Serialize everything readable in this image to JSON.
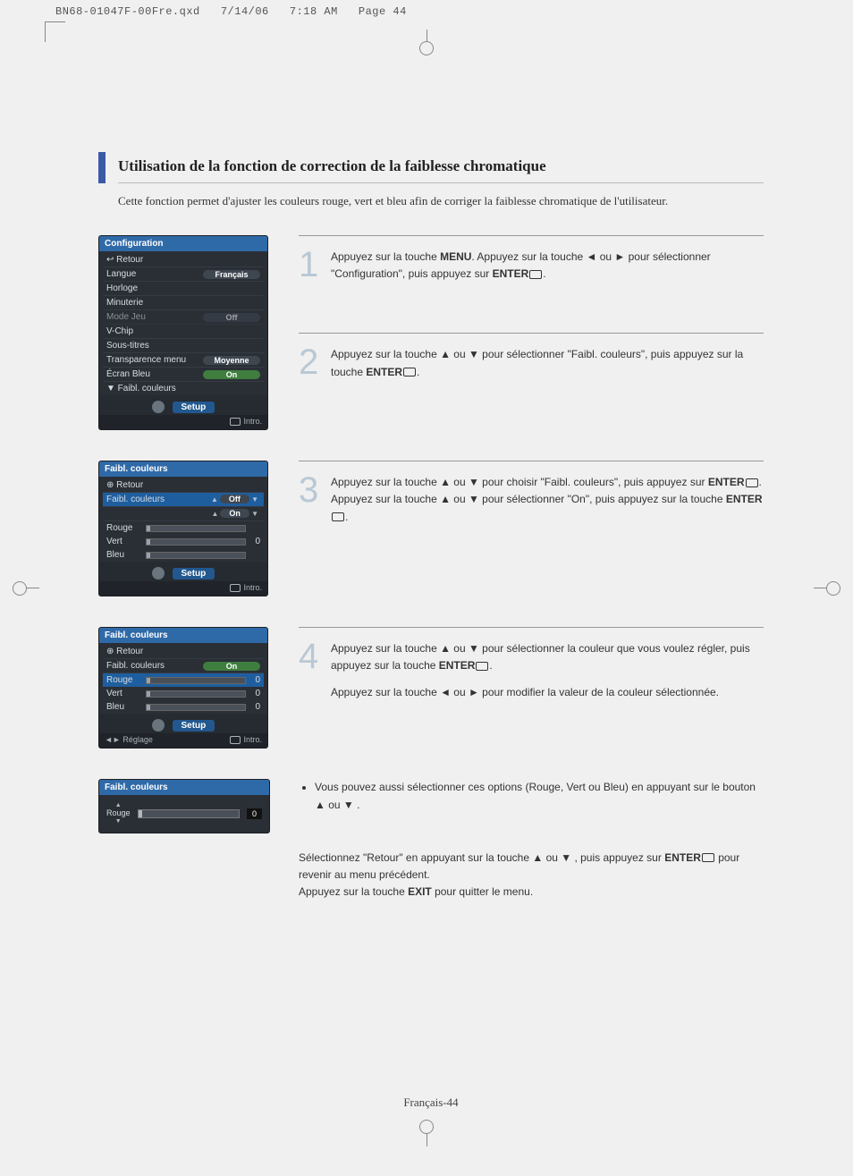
{
  "header": {
    "file": "BN68-01047F-00Fre.qxd",
    "date": "7/14/06",
    "time": "7:18 AM",
    "page_label": "Page 44"
  },
  "title": "Utilisation de la fonction de correction de la faiblesse chromatique",
  "intro": "Cette fonction permet d'ajuster les couleurs rouge, vert et bleu afin de corriger la faiblesse chromatique de l'utilisateur.",
  "steps": [
    {
      "num": "1",
      "text_a": "Appuyez sur la touche ",
      "bold_a": "MENU",
      "text_b": ". Appuyez sur la touche ◄ ou ► pour sélectionner \"Configuration\", puis appuyez sur ",
      "bold_b": "ENTER",
      "text_c": "."
    },
    {
      "num": "2",
      "text_a": "Appuyez sur la touche ▲ ou ▼ pour sélectionner \"Faibl. couleurs\", puis appuyez sur la touche ",
      "bold_a": "ENTER",
      "text_b": "."
    },
    {
      "num": "3",
      "text_a": "Appuyez sur la touche ▲ ou ▼ pour choisir \"Faibl. couleurs\", puis appuyez sur ",
      "bold_a": "ENTER",
      "text_b": ". Appuyez sur la touche ▲ ou ▼ pour sélectionner \"On\", puis appuyez sur la touche ",
      "bold_b": "ENTER",
      "text_c": "."
    },
    {
      "num": "4",
      "text_a": "Appuyez sur la touche ▲ ou ▼ pour sélectionner la couleur que vous voulez régler, puis appuyez sur la touche ",
      "bold_a": "ENTER",
      "text_b": ".",
      "extra": "Appuyez sur la touche ◄ ou ► pour modifier la valeur de la couleur sélectionnée."
    }
  ],
  "bullet": "Vous pouvez aussi sélectionner ces options (Rouge, Vert ou Bleu) en appuyant sur le bouton ▲ ou ▼ .",
  "closing": {
    "line1_a": "Sélectionnez \"Retour\" en appuyant sur la touche ▲ ou ▼ , puis appuyez sur ",
    "line1_bold": "ENTER",
    "line1_b": " pour revenir au menu précédent.",
    "line2_a": "Appuyez sur la touche ",
    "line2_bold": "EXIT",
    "line2_b": " pour quitter le menu."
  },
  "page_number": "Français-44",
  "osd_common": {
    "setup": "Setup",
    "intro": "Intro.",
    "reglage": "Réglage",
    "retour": "Retour"
  },
  "osd_config": {
    "title": "Configuration",
    "rows": [
      {
        "label": "Retour",
        "icon": "↩"
      },
      {
        "label": "Langue",
        "value": "Français",
        "pill": true
      },
      {
        "label": "Horloge"
      },
      {
        "label": "Minuterie"
      },
      {
        "label": "Mode Jeu",
        "value": "Off",
        "pill": true,
        "dim": true
      },
      {
        "label": "V-Chip"
      },
      {
        "label": "Sous-titres"
      },
      {
        "label": "Transparence menu",
        "value": "Moyenne",
        "pill": true
      },
      {
        "label": "Écran Bleu",
        "value": "On",
        "pill": true,
        "on": true
      },
      {
        "label": "Faibl. couleurs",
        "prefix": "▼",
        "selected": false
      }
    ]
  },
  "osd_faibl1": {
    "title": "Faibl. couleurs",
    "rows_top": [
      {
        "label": "Retour",
        "icon": "⊕"
      },
      {
        "label": "Faibl. couleurs",
        "value": "Off",
        "selected": true,
        "arrows": true
      },
      {
        "label": "",
        "value": "On",
        "arrows": true
      }
    ],
    "sliders": [
      {
        "label": "Rouge",
        "val": ""
      },
      {
        "label": "Vert",
        "val": "0"
      },
      {
        "label": "Bleu",
        "val": ""
      }
    ]
  },
  "osd_faibl2": {
    "title": "Faibl. couleurs",
    "rows_top": [
      {
        "label": "Retour",
        "icon": "⊕"
      },
      {
        "label": "Faibl. couleurs",
        "value": "On",
        "pill": true,
        "on": true
      }
    ],
    "sliders": [
      {
        "label": "Rouge",
        "val": "0",
        "selected": true
      },
      {
        "label": "Vert",
        "val": "0"
      },
      {
        "label": "Bleu",
        "val": "0"
      }
    ]
  },
  "osd_adjust": {
    "title": "Faibl. couleurs",
    "label": "Rouge",
    "value": "0"
  },
  "colors": {
    "accent": "#3b5aa6",
    "step_num": "#b9c8d4",
    "osd_bg": "#2a2f36",
    "osd_title": "#2f6aa8",
    "pill_on": "#3f7e3f"
  }
}
